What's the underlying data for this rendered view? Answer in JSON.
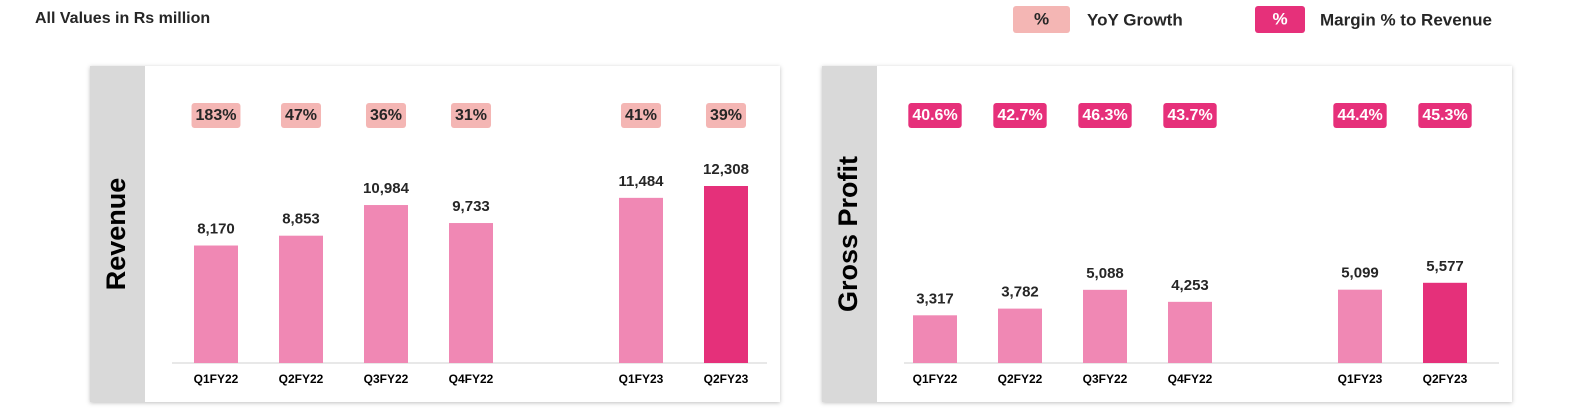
{
  "header": {
    "title": "All Values in Rs million"
  },
  "legend": [
    {
      "symbol": "%",
      "label": "YoY Growth",
      "color": "#f4b6b4",
      "text_color": "#262626"
    },
    {
      "symbol": "%",
      "label": "Margin % to Revenue",
      "color": "#e6307a",
      "text_color": "#ffffff"
    }
  ],
  "chart_data": [
    {
      "type": "bar",
      "title": "Revenue",
      "categories": [
        "Q1FY22",
        "Q2FY22",
        "Q3FY22",
        "Q4FY22",
        null,
        "Q1FY23",
        "Q2FY23"
      ],
      "values": [
        8170,
        8853,
        10984,
        9733,
        null,
        11484,
        12308
      ],
      "value_labels": [
        "8,170",
        "8,853",
        "10,984",
        "9,733",
        null,
        "11,484",
        "12,308"
      ],
      "colors": [
        "#f088b4",
        "#f088b4",
        "#f088b4",
        "#f088b4",
        null,
        "#f088b4",
        "#e5307a"
      ],
      "annotations": [
        "183%",
        "47%",
        "36%",
        "31%",
        null,
        "41%",
        "39%"
      ],
      "annotation_color": "#f4b6b4",
      "annotation_text_color": "#262626"
    },
    {
      "type": "bar",
      "title": "Gross Profit",
      "categories": [
        "Q1FY22",
        "Q2FY22",
        "Q3FY22",
        "Q4FY22",
        null,
        "Q1FY23",
        "Q2FY23"
      ],
      "values": [
        3317,
        3782,
        5088,
        4253,
        null,
        5099,
        5577
      ],
      "value_labels": [
        "3,317",
        "3,782",
        "5,088",
        "4,253",
        null,
        "5,099",
        "5,577"
      ],
      "colors": [
        "#f088b4",
        "#f088b4",
        "#f088b4",
        "#f088b4",
        null,
        "#f088b4",
        "#e5307a"
      ],
      "annotations": [
        "40.6%",
        "42.7%",
        "46.3%",
        "43.7%",
        null,
        "44.4%",
        "45.3%"
      ],
      "annotation_color": "#e6307a",
      "annotation_text_color": "#ffffff"
    }
  ]
}
